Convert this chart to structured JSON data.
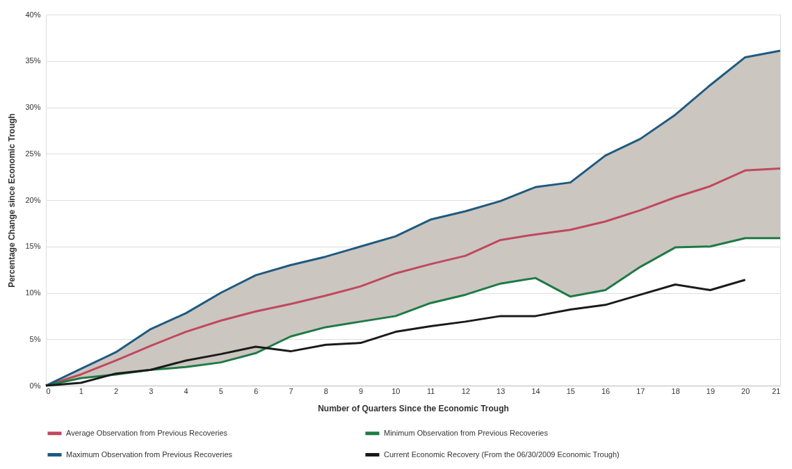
{
  "chart_data": {
    "type": "line",
    "xlabel": "Number of Quarters Since the Economic Trough",
    "ylabel": "Percentage Change since Economic Trough",
    "x": [
      0,
      1,
      2,
      3,
      4,
      5,
      6,
      7,
      8,
      9,
      10,
      11,
      12,
      13,
      14,
      15,
      16,
      17,
      18,
      19,
      20,
      21
    ],
    "xlim": [
      0,
      21
    ],
    "xticks": [
      0,
      1,
      2,
      3,
      4,
      5,
      6,
      7,
      8,
      9,
      10,
      11,
      12,
      13,
      14,
      15,
      16,
      17,
      18,
      19,
      20,
      21
    ],
    "ylim": [
      0,
      40
    ],
    "yticks": [
      {
        "value": 0,
        "label": "0%"
      },
      {
        "value": 5,
        "label": "5%"
      },
      {
        "value": 10,
        "label": "10%"
      },
      {
        "value": 15,
        "label": "15%"
      },
      {
        "value": 20,
        "label": "20%"
      },
      {
        "value": 25,
        "label": "25%"
      },
      {
        "value": 30,
        "label": "30%"
      },
      {
        "value": 35,
        "label": "35%"
      },
      {
        "value": 40,
        "label": "40%"
      }
    ],
    "grid": "y",
    "legend": "bottom",
    "marker": "none",
    "line_style": "solid",
    "series": [
      {
        "name": "Average Observation from Previous Recoveries",
        "color": "#c0485e",
        "values": [
          0,
          1.2,
          2.7,
          4.3,
          5.8,
          7,
          8,
          8.8,
          9.7,
          10.7,
          12.1,
          13.1,
          14,
          15.7,
          16.3,
          16.8,
          17.7,
          18.9,
          20.3,
          21.5,
          23.2,
          23.4
        ],
        "lower": [
          0,
          0.8,
          1.2,
          1.7,
          2,
          2.5,
          3.5,
          5.3,
          6.3,
          6.9,
          7.5,
          8.9,
          9.8,
          11,
          11.6,
          9.6,
          10.3,
          12.8,
          14.9,
          15,
          15.9,
          15.9
        ],
        "upper": [
          0,
          1.8,
          3.6,
          6.1,
          7.8,
          10,
          11.9,
          13,
          13.9,
          15,
          16.1,
          17.9,
          18.8,
          19.9,
          21.4,
          21.9,
          24.8,
          26.6,
          29.2,
          32.4,
          35.4,
          36.1
        ]
      },
      {
        "name": "Minimum Observation from Previous Recoveries",
        "color": "#1e7a45",
        "values": [
          0,
          0.8,
          1.2,
          1.7,
          2,
          2.5,
          3.5,
          5.3,
          6.3,
          6.9,
          7.5,
          8.9,
          9.8,
          11,
          11.6,
          9.6,
          10.3,
          12.8,
          14.9,
          15,
          15.9,
          15.9
        ]
      },
      {
        "name": "Maximum Observation from Previous Recoveries",
        "color": "#1f5a80",
        "values": [
          0,
          1.8,
          3.6,
          6.1,
          7.8,
          10,
          11.9,
          13,
          13.9,
          15,
          16.1,
          17.9,
          18.8,
          19.9,
          21.4,
          21.9,
          24.8,
          26.6,
          29.2,
          32.4,
          35.4,
          36.1
        ]
      },
      {
        "name": "Current Economic Recovery (From the 06/30/2009 Economic Trough)",
        "color": "#1a1a1a",
        "values": [
          0,
          0.3,
          1.3,
          1.7,
          2.7,
          3.4,
          4.2,
          3.7,
          4.4,
          4.6,
          5.8,
          6.4,
          6.9,
          7.5,
          7.5,
          8.2,
          8.7,
          9.8,
          10.9,
          10.3,
          11.4,
          null
        ]
      }
    ]
  }
}
